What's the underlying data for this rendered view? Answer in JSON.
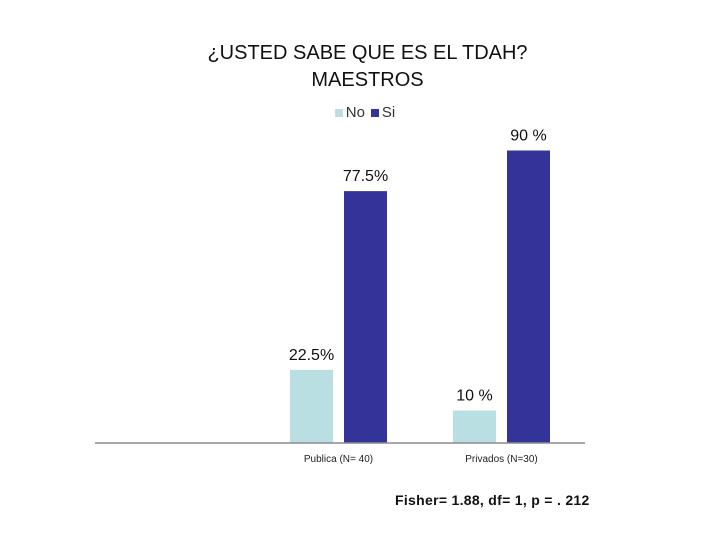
{
  "chart_data": {
    "type": "bar",
    "title": "¿USTED SABE QUE ES EL TDAH? MAESTROS",
    "title_lines": [
      "¿USTED SABE QUE ES EL TDAH?",
      "MAESTROS"
    ],
    "categories": [
      "Publica (N= 40)",
      "Privados (N=30)"
    ],
    "series": [
      {
        "name": "No",
        "values": [
          22.5,
          10
        ],
        "color": "#b9dfe3",
        "labels": [
          "22.5%",
          "10 %"
        ]
      },
      {
        "name": "Si",
        "values": [
          77.5,
          90
        ],
        "color": "#333399",
        "labels": [
          "77.5%",
          "90 %"
        ]
      }
    ],
    "ylim": [
      0,
      100
    ],
    "grid": false,
    "legend": "top-center",
    "xlabel": "",
    "ylabel": ""
  },
  "footnote": "Fisher= 1.88, df= 1, p = . 212"
}
